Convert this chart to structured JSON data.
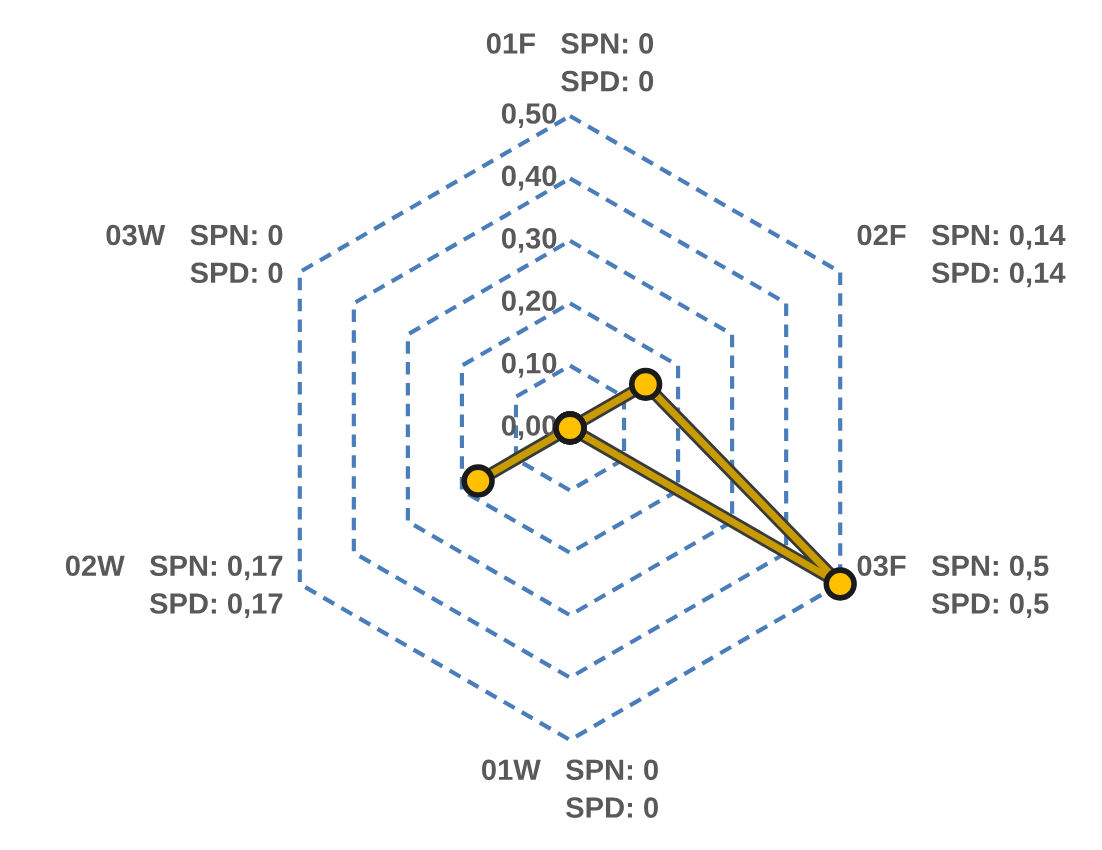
{
  "chart_data": {
    "type": "radar",
    "categories": [
      "01F   SPN: 0\nSPD: 0",
      "02F   SPN: 0,14\nSPD: 0,14",
      "03F   SPN: 0,5\nSPD: 0,5",
      "01W   SPN: 0\nSPD: 0",
      "02W   SPN: 0,17\nSPD: 0,17",
      "03W   SPN: 0\nSPD: 0"
    ],
    "series": [
      {
        "color": "#c89b00",
        "values": [
          0,
          0.14,
          0.5,
          0,
          0.17,
          0
        ]
      }
    ],
    "ylim": [
      0,
      0.5
    ],
    "yticks": [
      {
        "value": 0,
        "label": "0,00"
      },
      {
        "value": 0.1,
        "label": "0,10"
      },
      {
        "value": 0.2,
        "label": "0,20"
      },
      {
        "value": 0.3,
        "label": "0,30"
      },
      {
        "value": 0.4,
        "label": "0,40"
      },
      {
        "value": 0.5,
        "label": "0,50"
      }
    ],
    "grid": true,
    "marker": "circle",
    "line_style": "solid"
  }
}
